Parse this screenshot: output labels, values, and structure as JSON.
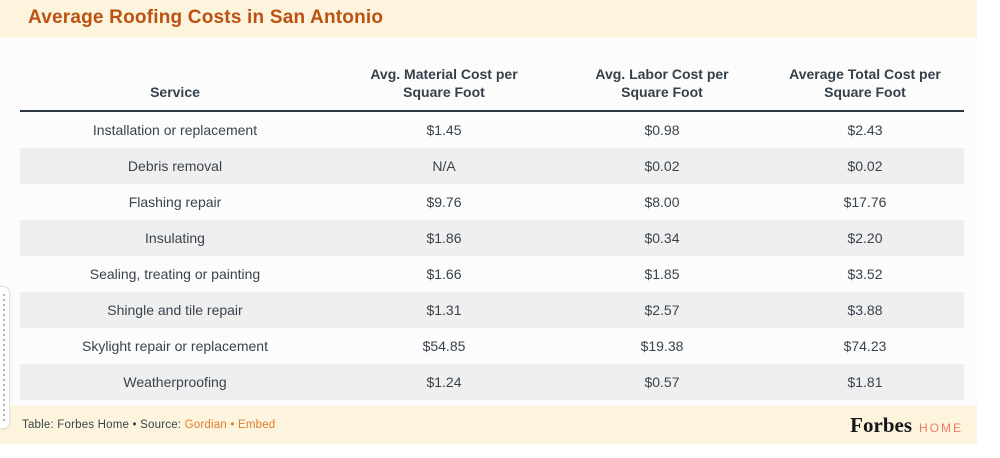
{
  "chart_data": {
    "type": "table",
    "title": "Average Roofing Costs in San Antonio",
    "columns": [
      "Service",
      "Avg. Material Cost per Square Foot",
      "Avg. Labor Cost per Square Foot",
      "Average Total Cost per Square Foot"
    ],
    "rows": [
      [
        "Installation or replacement",
        "$1.45",
        "$0.98",
        "$2.43"
      ],
      [
        "Debris removal",
        "N/A",
        "$0.02",
        "$0.02"
      ],
      [
        "Flashing repair",
        "$9.76",
        "$8.00",
        "$17.76"
      ],
      [
        "Insulating",
        "$1.86",
        "$0.34",
        "$2.20"
      ],
      [
        "Sealing, treating or painting",
        "$1.66",
        "$1.85",
        "$3.52"
      ],
      [
        "Shingle and tile repair",
        "$1.31",
        "$2.57",
        "$3.88"
      ],
      [
        "Skylight repair or replacement",
        "$54.85",
        "$19.38",
        "$74.23"
      ],
      [
        "Weatherproofing",
        "$1.24",
        "$0.57",
        "$1.81"
      ]
    ],
    "layout": {
      "striped": true,
      "stripe_rows": "even",
      "header_rule": true
    }
  },
  "footer": {
    "attribution_prefix": "Table: Forbes Home • Source: ",
    "source_link": "Gordian",
    "separator": " • ",
    "embed_link": "Embed",
    "logo_primary": "Forbes",
    "logo_secondary": "HOME"
  },
  "colors": {
    "title_accent": "#bc5111",
    "banner_bg": "#fcf4dc",
    "text_dark": "#39434e",
    "header_text": "#35404b",
    "header_rule": "#2e3842",
    "row_stripe": "#efefef",
    "link_orange": "#dd7d2d",
    "logo_home_salmon": "#ef7a68"
  }
}
